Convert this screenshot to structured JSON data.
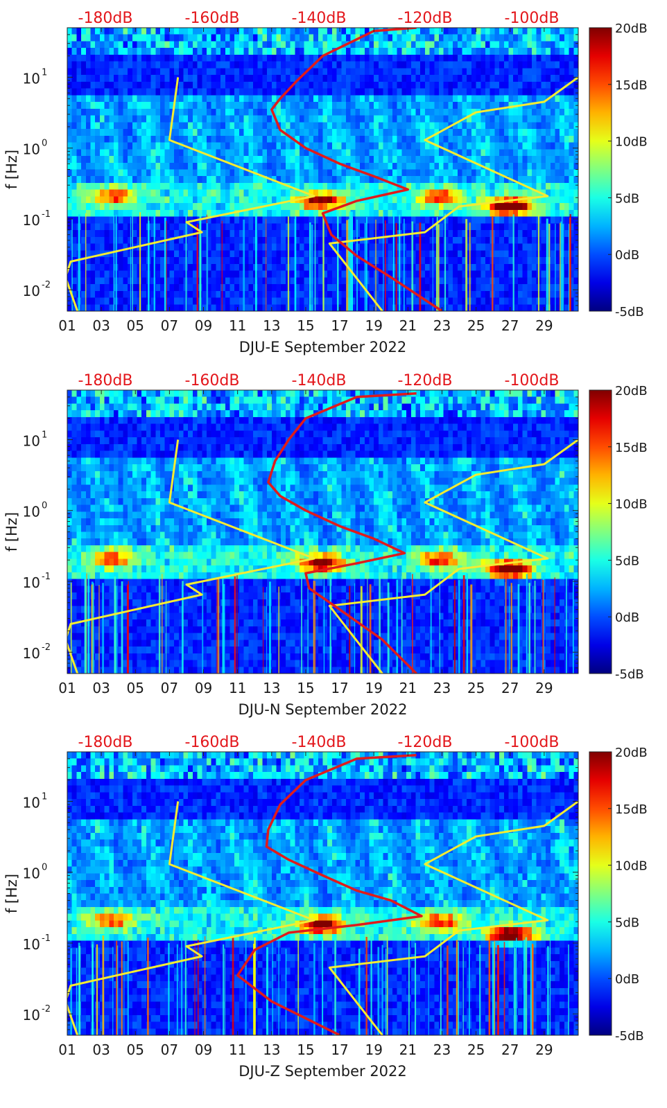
{
  "colors": {
    "red_curve": "#e01b1b",
    "yellow_curve": "#f4ec32",
    "top_label": "#e3161b",
    "background_blue": "#0c2a9e",
    "tick_text": "#1a1a1a"
  },
  "chart_data": [
    {
      "type": "heatmap",
      "component": "E",
      "title": "",
      "xlabel": "DJU-E September 2022",
      "ylabel": "f [Hz]",
      "x_ticks": [
        "01",
        "03",
        "05",
        "07",
        "09",
        "11",
        "13",
        "15",
        "17",
        "19",
        "21",
        "23",
        "25",
        "27",
        "29"
      ],
      "x_range": [
        1,
        31
      ],
      "y_scale": "log",
      "y_range": [
        0.005,
        50
      ],
      "y_ticks": [
        {
          "exp": "-2",
          "value": 0.01
        },
        {
          "exp": "-1",
          "value": 0.1
        },
        {
          "exp": "0",
          "value": 1
        },
        {
          "exp": "1",
          "value": 10
        }
      ],
      "top_axis_labels": [
        "-180dB",
        "-160dB",
        "-140dB",
        "-120dB",
        "-100dB"
      ],
      "colorbar": {
        "labels": [
          "20dB",
          "15dB",
          "10dB",
          "5dB",
          "0dB",
          "-5dB"
        ],
        "range": [
          -5,
          20
        ]
      },
      "microseism_band_hz": [
        0.12,
        0.35
      ],
      "storm_events": [
        {
          "day": 3.6,
          "f": 0.21,
          "level": 12
        },
        {
          "day": 15.9,
          "f": 0.18,
          "level": 17
        },
        {
          "day": 22.9,
          "f": 0.2,
          "level": 13
        },
        {
          "day": 27.0,
          "f": 0.15,
          "level": 20
        }
      ],
      "series": [
        {
          "name": "yellow_noise_model_low",
          "color": "#f4ec32",
          "points": [
            [
              7.5,
              10
            ],
            [
              7.0,
              1.3
            ],
            [
              15.5,
              0.21
            ],
            [
              8.0,
              0.09
            ],
            [
              8.9,
              0.065
            ],
            [
              1.2,
              0.025
            ],
            [
              0.9,
              0.015
            ],
            [
              1.6,
              0.005
            ]
          ]
        },
        {
          "name": "yellow_noise_model_high",
          "color": "#f4ec32",
          "points": [
            [
              31,
              10
            ],
            [
              29,
              4.5
            ],
            [
              25,
              3.2
            ],
            [
              22,
              1.3
            ],
            [
              29.2,
              0.21
            ],
            [
              24,
              0.15
            ],
            [
              22,
              0.065
            ],
            [
              16.4,
              0.045
            ],
            [
              19.5,
              0.005
            ]
          ]
        },
        {
          "name": "red_station_median",
          "color": "#e01b1b",
          "points": [
            [
              21.5,
              50
            ],
            [
              19,
              45
            ],
            [
              16,
              20
            ],
            [
              14.5,
              9
            ],
            [
              13.5,
              5
            ],
            [
              13,
              3.5
            ],
            [
              13.5,
              1.8
            ],
            [
              15,
              1.0
            ],
            [
              17,
              0.6
            ],
            [
              19,
              0.4
            ],
            [
              21,
              0.26
            ],
            [
              18,
              0.18
            ],
            [
              16,
              0.12
            ],
            [
              16.5,
              0.06
            ],
            [
              18,
              0.03
            ],
            [
              20,
              0.015
            ],
            [
              23,
              0.005
            ]
          ]
        }
      ]
    },
    {
      "type": "heatmap",
      "component": "N",
      "title": "",
      "xlabel": "DJU-N September 2022",
      "ylabel": "f [Hz]",
      "x_ticks": [
        "01",
        "03",
        "05",
        "07",
        "09",
        "11",
        "13",
        "15",
        "17",
        "19",
        "21",
        "23",
        "25",
        "27",
        "29"
      ],
      "x_range": [
        1,
        31
      ],
      "y_scale": "log",
      "y_range": [
        0.005,
        50
      ],
      "y_ticks": [
        {
          "exp": "-2",
          "value": 0.01
        },
        {
          "exp": "-1",
          "value": 0.1
        },
        {
          "exp": "0",
          "value": 1
        },
        {
          "exp": "1",
          "value": 10
        }
      ],
      "top_axis_labels": [
        "-180dB",
        "-160dB",
        "-140dB",
        "-120dB",
        "-100dB"
      ],
      "colorbar": {
        "labels": [
          "20dB",
          "15dB",
          "10dB",
          "5dB",
          "0dB",
          "-5dB"
        ],
        "range": [
          -5,
          20
        ]
      },
      "microseism_band_hz": [
        0.12,
        0.35
      ],
      "storm_events": [
        {
          "day": 3.6,
          "f": 0.21,
          "level": 12
        },
        {
          "day": 15.9,
          "f": 0.18,
          "level": 17
        },
        {
          "day": 22.9,
          "f": 0.2,
          "level": 13
        },
        {
          "day": 27.0,
          "f": 0.15,
          "level": 20
        }
      ],
      "series": [
        {
          "name": "yellow_noise_model_low",
          "color": "#f4ec32",
          "points": [
            [
              7.5,
              10
            ],
            [
              7.0,
              1.3
            ],
            [
              15.5,
              0.21
            ],
            [
              8.0,
              0.09
            ],
            [
              8.9,
              0.065
            ],
            [
              1.2,
              0.025
            ],
            [
              0.9,
              0.015
            ],
            [
              1.6,
              0.005
            ]
          ]
        },
        {
          "name": "yellow_noise_model_high",
          "color": "#f4ec32",
          "points": [
            [
              31,
              10
            ],
            [
              29,
              4.5
            ],
            [
              25,
              3.2
            ],
            [
              22,
              1.3
            ],
            [
              29.2,
              0.21
            ],
            [
              24,
              0.15
            ],
            [
              22,
              0.065
            ],
            [
              16.4,
              0.045
            ],
            [
              19.5,
              0.005
            ]
          ]
        },
        {
          "name": "red_station_median",
          "color": "#e01b1b",
          "points": [
            [
              21.5,
              45
            ],
            [
              18,
              40
            ],
            [
              15,
              20
            ],
            [
              14,
              10
            ],
            [
              13.2,
              5
            ],
            [
              12.8,
              2.5
            ],
            [
              13.5,
              1.6
            ],
            [
              15,
              1.0
            ],
            [
              17,
              0.6
            ],
            [
              19,
              0.4
            ],
            [
              20.8,
              0.25
            ],
            [
              18,
              0.18
            ],
            [
              15,
              0.13
            ],
            [
              15.2,
              0.08
            ],
            [
              17,
              0.04
            ],
            [
              19.5,
              0.015
            ],
            [
              21.5,
              0.005
            ]
          ]
        }
      ]
    },
    {
      "type": "heatmap",
      "component": "Z",
      "title": "",
      "xlabel": "DJU-Z September 2022",
      "ylabel": "f [Hz]",
      "x_ticks": [
        "01",
        "03",
        "05",
        "07",
        "09",
        "11",
        "13",
        "15",
        "17",
        "19",
        "21",
        "23",
        "25",
        "27",
        "29"
      ],
      "x_range": [
        1,
        31
      ],
      "y_scale": "log",
      "y_range": [
        0.005,
        50
      ],
      "y_ticks": [
        {
          "exp": "-2",
          "value": 0.01
        },
        {
          "exp": "-1",
          "value": 0.1
        },
        {
          "exp": "0",
          "value": 1
        },
        {
          "exp": "1",
          "value": 10
        }
      ],
      "top_axis_labels": [
        "-180dB",
        "-160dB",
        "-140dB",
        "-120dB",
        "-100dB"
      ],
      "colorbar": {
        "labels": [
          "20dB",
          "15dB",
          "10dB",
          "5dB",
          "0dB",
          "-5dB"
        ],
        "range": [
          -5,
          20
        ]
      },
      "microseism_band_hz": [
        0.12,
        0.35
      ],
      "storm_events": [
        {
          "day": 3.6,
          "f": 0.21,
          "level": 12
        },
        {
          "day": 15.9,
          "f": 0.18,
          "level": 17
        },
        {
          "day": 22.9,
          "f": 0.2,
          "level": 13
        },
        {
          "day": 27.0,
          "f": 0.13,
          "level": 20
        }
      ],
      "series": [
        {
          "name": "yellow_noise_model_low",
          "color": "#f4ec32",
          "points": [
            [
              7.5,
              10
            ],
            [
              7.0,
              1.3
            ],
            [
              15.5,
              0.21
            ],
            [
              8.0,
              0.09
            ],
            [
              8.9,
              0.065
            ],
            [
              1.2,
              0.025
            ],
            [
              0.9,
              0.015
            ],
            [
              1.6,
              0.005
            ]
          ]
        },
        {
          "name": "yellow_noise_model_high",
          "color": "#f4ec32",
          "points": [
            [
              31,
              10
            ],
            [
              29,
              4.5
            ],
            [
              25,
              3.2
            ],
            [
              22,
              1.3
            ],
            [
              29.2,
              0.21
            ],
            [
              24,
              0.15
            ],
            [
              22,
              0.065
            ],
            [
              16.4,
              0.045
            ],
            [
              19.5,
              0.005
            ]
          ]
        },
        {
          "name": "red_station_median",
          "color": "#e01b1b",
          "points": [
            [
              21.5,
              45
            ],
            [
              18,
              40
            ],
            [
              15,
              20
            ],
            [
              13.5,
              9
            ],
            [
              12.8,
              4
            ],
            [
              12.7,
              2.3
            ],
            [
              14,
              1.5
            ],
            [
              16,
              0.9
            ],
            [
              18,
              0.55
            ],
            [
              20,
              0.4
            ],
            [
              21.8,
              0.24
            ],
            [
              18,
              0.18
            ],
            [
              14,
              0.14
            ],
            [
              12,
              0.08
            ],
            [
              11,
              0.035
            ],
            [
              13,
              0.015
            ],
            [
              17,
              0.005
            ]
          ]
        }
      ]
    }
  ]
}
